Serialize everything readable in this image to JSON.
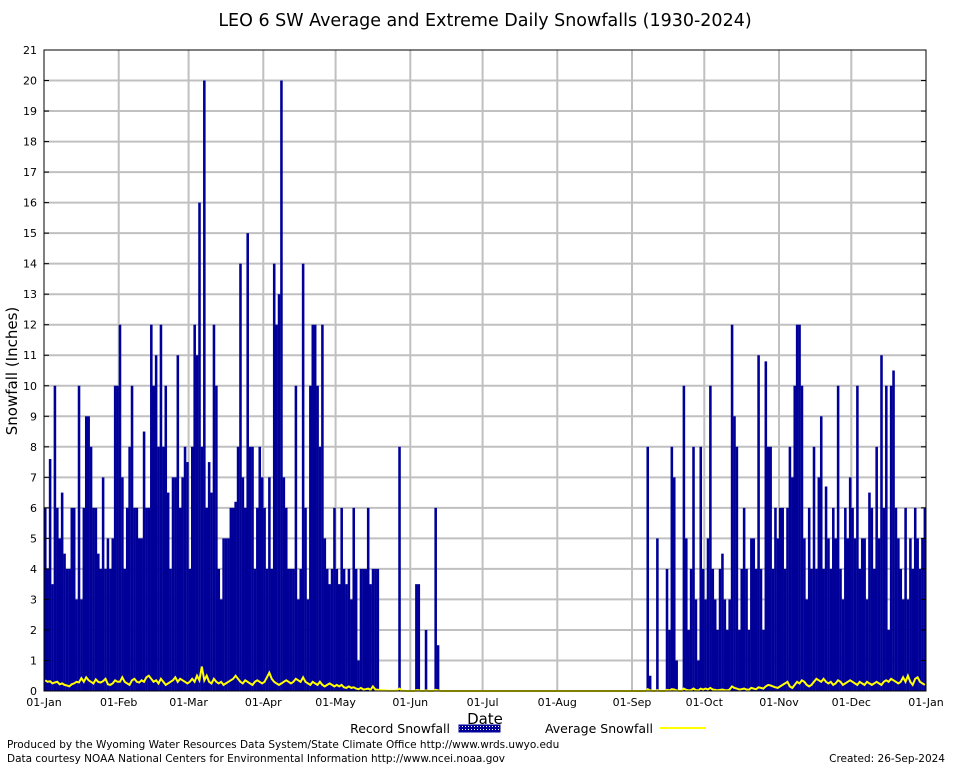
{
  "chart_data": {
    "type": "bar",
    "title": "LEO 6 SW Average and Extreme Daily Snowfalls (1930-2024)",
    "xlabel": "Date",
    "ylabel": "Snowfall (Inches)",
    "ylim": [
      0,
      21
    ],
    "yticks": [
      "0",
      "1",
      "2",
      "3",
      "4",
      "5",
      "6",
      "7",
      "8",
      "9",
      "10",
      "11",
      "12",
      "13",
      "14",
      "15",
      "16",
      "17",
      "18",
      "19",
      "20",
      "21"
    ],
    "xticks": [
      "01-Jan",
      "01-Feb",
      "01-Mar",
      "01-Apr",
      "01-May",
      "01-Jun",
      "01-Jul",
      "01-Aug",
      "01-Sep",
      "01-Oct",
      "01-Nov",
      "01-Dec",
      "01-Jan"
    ],
    "xtick_days": [
      0,
      31,
      60,
      91,
      121,
      152,
      182,
      213,
      244,
      274,
      305,
      335,
      366
    ],
    "grid": true,
    "legend_placement": "bottom",
    "series": [
      {
        "name": "Record Snowfall",
        "color": "#000099",
        "style": "bars",
        "values": [
          6,
          4,
          7.6,
          3.5,
          10,
          6,
          5,
          6.5,
          4.5,
          4,
          4,
          6,
          6,
          3,
          10,
          3,
          6,
          9,
          9,
          8,
          6,
          6,
          4.5,
          4,
          7,
          4,
          5,
          4,
          5,
          10,
          10,
          12,
          7,
          4,
          6,
          8,
          10,
          6,
          6,
          5,
          5,
          8.5,
          6,
          6,
          12,
          10,
          11,
          8,
          12,
          8,
          10,
          6.5,
          4,
          7,
          7,
          11,
          6,
          7,
          8,
          7.5,
          4,
          8,
          12,
          11,
          16,
          8,
          20,
          6,
          7.5,
          6.5,
          12,
          10,
          4,
          3,
          5,
          5,
          5,
          6,
          6,
          6.2,
          8,
          14,
          7,
          6,
          15,
          8,
          8,
          4,
          6,
          8,
          7,
          6,
          4,
          7,
          4,
          14,
          12,
          13,
          20,
          7,
          6,
          4,
          4,
          4,
          10,
          3,
          4,
          14,
          6,
          3,
          10,
          12,
          12,
          10,
          8,
          12,
          5,
          4,
          3.5,
          4,
          6,
          4,
          3.5,
          6,
          4,
          3.5,
          4,
          3,
          6,
          4,
          1,
          4,
          4,
          4,
          6,
          3.5,
          4,
          4,
          4,
          0,
          0,
          0,
          0,
          0,
          0,
          0,
          0,
          8,
          0,
          0,
          0,
          0,
          0,
          0,
          3.5,
          3.5,
          0,
          0,
          2,
          0,
          0,
          0,
          6,
          1.5,
          0,
          0,
          0,
          0,
          0,
          0,
          0,
          0,
          0,
          0,
          0,
          0,
          0,
          0,
          0,
          0,
          0,
          0,
          0,
          0,
          0,
          0,
          0,
          0,
          0,
          0,
          0,
          0,
          0,
          0,
          0,
          0,
          0,
          0,
          0,
          0,
          0,
          0,
          0,
          0,
          0,
          0,
          0,
          0,
          0,
          0,
          0,
          0,
          0,
          0,
          0,
          0,
          0,
          0,
          0,
          0,
          0,
          0,
          0,
          0,
          0,
          0,
          0,
          0,
          0,
          0,
          0,
          0,
          0,
          0,
          0,
          0,
          0,
          0,
          0,
          0,
          0,
          0,
          0,
          0,
          0,
          0,
          0,
          0,
          0,
          0,
          8,
          0.5,
          0,
          0,
          5,
          0,
          0,
          0,
          4,
          2,
          8,
          7,
          1,
          0,
          0,
          10,
          5,
          2,
          4,
          8,
          3,
          1,
          8,
          4,
          3,
          5,
          10,
          4,
          3,
          2,
          4,
          4.5,
          3,
          2,
          3,
          12,
          9,
          8,
          2,
          4,
          6,
          4,
          2,
          5,
          5,
          4,
          11,
          4,
          2,
          10.8,
          8,
          8,
          4,
          6,
          5,
          6,
          6,
          4,
          6,
          8,
          7,
          10,
          12,
          12,
          10,
          5,
          3,
          6,
          4,
          8,
          4,
          7,
          9,
          4,
          6.7,
          5,
          4,
          6,
          5,
          10,
          4,
          3,
          6,
          5,
          7,
          6,
          5,
          10,
          4,
          5,
          5,
          3,
          6.5,
          6,
          4,
          8,
          5,
          11,
          6,
          10,
          2,
          10,
          10.5,
          6,
          5,
          4,
          3,
          6,
          3,
          5,
          4,
          6,
          5,
          4,
          5,
          6
        ]
      },
      {
        "name": "Average Snowfall",
        "color": "#ffff00",
        "style": "line",
        "values": [
          0.35,
          0.3,
          0.32,
          0.25,
          0.28,
          0.3,
          0.22,
          0.25,
          0.2,
          0.18,
          0.15,
          0.22,
          0.25,
          0.3,
          0.28,
          0.42,
          0.3,
          0.45,
          0.35,
          0.3,
          0.25,
          0.38,
          0.3,
          0.28,
          0.32,
          0.4,
          0.22,
          0.2,
          0.25,
          0.35,
          0.3,
          0.3,
          0.45,
          0.3,
          0.25,
          0.2,
          0.35,
          0.4,
          0.3,
          0.28,
          0.35,
          0.3,
          0.45,
          0.5,
          0.4,
          0.3,
          0.35,
          0.25,
          0.4,
          0.3,
          0.2,
          0.25,
          0.3,
          0.35,
          0.45,
          0.3,
          0.4,
          0.35,
          0.3,
          0.25,
          0.3,
          0.4,
          0.3,
          0.5,
          0.35,
          0.8,
          0.35,
          0.5,
          0.3,
          0.25,
          0.4,
          0.3,
          0.25,
          0.3,
          0.2,
          0.25,
          0.3,
          0.35,
          0.4,
          0.5,
          0.4,
          0.3,
          0.25,
          0.35,
          0.3,
          0.25,
          0.2,
          0.3,
          0.35,
          0.3,
          0.25,
          0.3,
          0.45,
          0.6,
          0.4,
          0.3,
          0.25,
          0.2,
          0.25,
          0.3,
          0.35,
          0.3,
          0.25,
          0.3,
          0.4,
          0.35,
          0.3,
          0.45,
          0.3,
          0.25,
          0.2,
          0.3,
          0.25,
          0.2,
          0.3,
          0.2,
          0.15,
          0.2,
          0.25,
          0.2,
          0.15,
          0.2,
          0.15,
          0.2,
          0.12,
          0.1,
          0.15,
          0.1,
          0.12,
          0.08,
          0.06,
          0.1,
          0.05,
          0.06,
          0.08,
          0.04,
          0.15,
          0.05,
          0.04,
          0.03,
          0.02,
          0.02,
          0.01,
          0.01,
          0.01,
          0.01,
          0.02,
          0.08,
          0.01,
          0.01,
          0,
          0,
          0,
          0,
          0.03,
          0.03,
          0,
          0,
          0.02,
          0,
          0,
          0,
          0.04,
          0.02,
          0,
          0,
          0,
          0,
          0,
          0,
          0,
          0,
          0,
          0,
          0,
          0,
          0,
          0,
          0,
          0,
          0,
          0,
          0,
          0,
          0,
          0,
          0,
          0,
          0,
          0,
          0,
          0,
          0,
          0,
          0,
          0,
          0,
          0,
          0,
          0,
          0,
          0,
          0,
          0,
          0,
          0,
          0,
          0,
          0,
          0,
          0,
          0,
          0,
          0,
          0,
          0,
          0,
          0,
          0,
          0,
          0,
          0,
          0,
          0,
          0,
          0,
          0,
          0,
          0,
          0,
          0,
          0,
          0,
          0,
          0,
          0,
          0,
          0,
          0,
          0,
          0,
          0,
          0,
          0,
          0,
          0,
          0,
          0,
          0,
          0,
          0.06,
          0.02,
          0,
          0,
          0.03,
          0,
          0,
          0,
          0.04,
          0.02,
          0.06,
          0.05,
          0.02,
          0,
          0,
          0.08,
          0.04,
          0.02,
          0.03,
          0.08,
          0.03,
          0.02,
          0.08,
          0.05,
          0.08,
          0.05,
          0.1,
          0.05,
          0.04,
          0.02,
          0.04,
          0.05,
          0.03,
          0.02,
          0.05,
          0.15,
          0.1,
          0.08,
          0.05,
          0.06,
          0.08,
          0.05,
          0.04,
          0.1,
          0.08,
          0.06,
          0.12,
          0.1,
          0.08,
          0.15,
          0.2,
          0.18,
          0.15,
          0.12,
          0.1,
          0.15,
          0.2,
          0.25,
          0.3,
          0.15,
          0.1,
          0.2,
          0.3,
          0.25,
          0.35,
          0.3,
          0.2,
          0.15,
          0.2,
          0.3,
          0.4,
          0.35,
          0.3,
          0.4,
          0.3,
          0.25,
          0.3,
          0.2,
          0.25,
          0.35,
          0.3,
          0.2,
          0.25,
          0.3,
          0.35,
          0.3,
          0.25,
          0.2,
          0.3,
          0.25,
          0.2,
          0.3,
          0.25,
          0.2,
          0.25,
          0.3,
          0.25,
          0.2,
          0.3,
          0.35,
          0.3,
          0.4,
          0.35,
          0.3,
          0.25,
          0.3,
          0.45,
          0.3,
          0.5,
          0.3,
          0.2,
          0.4,
          0.45,
          0.3,
          0.25,
          0.2
        ]
      }
    ]
  },
  "footer": {
    "produced_by": "Produced by the Wyoming Water Resources Data System/State Climate Office http://www.wrds.uwyo.edu",
    "courtesy": "Data courtesy NOAA National Centers for Environmental Information http://www.ncei.noaa.gov",
    "created": "Created:  26-Sep-2024"
  }
}
